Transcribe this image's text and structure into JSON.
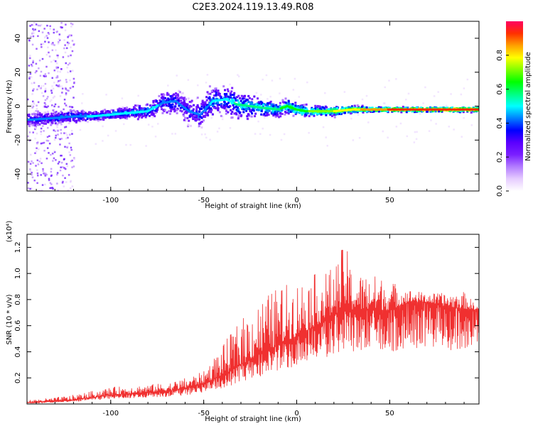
{
  "title": "C2E3.2024.119.13.49.R08",
  "colors": {
    "snr_line": "#f03030",
    "colormap": [
      "#ffffff",
      "#e6ccff",
      "#b37dff",
      "#7a1fff",
      "#5a00ff",
      "#0000ff",
      "#0080ff",
      "#00ffff",
      "#00ff80",
      "#00ff00",
      "#80ff00",
      "#ffff00",
      "#ffa000",
      "#ff3000",
      "#ff0060"
    ]
  },
  "chart_data": [
    {
      "type": "heatmap",
      "title": "",
      "xlabel": "Height of straight line (km)",
      "ylabel": "Frequency (Hz)",
      "xlim": [
        -145,
        98
      ],
      "ylim": [
        -50,
        50
      ],
      "x_ticks": [
        -100,
        -50,
        0,
        50
      ],
      "y_ticks": [
        -40,
        -20,
        0,
        20,
        40
      ],
      "colorbar": {
        "label": "Normalized spectral amplitude",
        "range": [
          0.0,
          1.0
        ],
        "ticks": [
          0.0,
          0.2,
          0.4,
          0.6,
          0.8
        ]
      },
      "ridge": {
        "x": [
          -143,
          -130,
          -120,
          -110,
          -100,
          -90,
          -80,
          -72,
          -65,
          -58,
          -52,
          -45,
          -38,
          -32,
          -25,
          -18,
          -10,
          -5,
          0,
          5,
          10,
          20,
          30,
          40,
          50,
          60,
          70,
          80,
          90,
          97
        ],
        "y": [
          -8,
          -7,
          -6,
          -6,
          -5,
          -4,
          -3,
          2,
          3,
          -3,
          -5,
          3,
          4,
          1,
          0,
          -1,
          -2,
          0,
          -2,
          -3,
          -3,
          -3,
          -2,
          -2,
          -2,
          -2,
          -2,
          -2,
          -2,
          -2
        ],
        "amp": [
          0.35,
          0.38,
          0.4,
          0.42,
          0.45,
          0.45,
          0.45,
          0.4,
          0.38,
          0.35,
          0.4,
          0.42,
          0.45,
          0.5,
          0.5,
          0.55,
          0.55,
          0.58,
          0.6,
          0.62,
          0.65,
          0.7,
          0.75,
          0.8,
          0.85,
          0.88,
          0.9,
          0.9,
          0.88,
          0.85
        ],
        "spread": [
          6,
          5,
          5,
          4,
          4,
          5,
          6,
          9,
          10,
          10,
          12,
          12,
          12,
          11,
          9,
          7,
          6,
          6,
          6,
          5,
          4,
          4,
          3,
          2,
          2,
          2,
          2,
          2,
          2,
          2
        ]
      }
    },
    {
      "type": "line",
      "title": "",
      "xlabel": "Height of straight line (km)",
      "ylabel": "SNR (10 * v/v)",
      "y_scale_label": "(x10⁴)",
      "xlim": [
        -145,
        98
      ],
      "ylim": [
        0,
        1.3
      ],
      "x_ticks": [
        -100,
        -50,
        0,
        50
      ],
      "y_ticks": [
        0.2,
        0.4,
        0.6,
        0.8,
        1.0,
        1.2
      ],
      "series": [
        {
          "x": [
            -145,
            -130,
            -120,
            -110,
            -100,
            -90,
            -80,
            -70,
            -60,
            -50,
            -40,
            -30,
            -20,
            -10,
            0,
            10,
            20,
            26,
            30,
            40,
            50,
            60,
            70,
            80,
            90,
            98
          ],
          "value": [
            0.01,
            0.02,
            0.03,
            0.05,
            0.07,
            0.08,
            0.09,
            0.1,
            0.12,
            0.16,
            0.22,
            0.3,
            0.38,
            0.45,
            0.52,
            0.6,
            0.68,
            0.75,
            0.72,
            0.72,
            0.72,
            0.78,
            0.78,
            0.75,
            0.73,
            0.72
          ],
          "peak": [
            0.03,
            0.05,
            0.07,
            0.1,
            0.13,
            0.14,
            0.15,
            0.16,
            0.2,
            0.25,
            0.45,
            0.65,
            0.8,
            0.9,
            0.95,
            1.0,
            1.05,
            1.25,
            1.0,
            1.0,
            0.95,
            0.88,
            0.85,
            0.85,
            0.86,
            0.74
          ]
        }
      ]
    }
  ]
}
